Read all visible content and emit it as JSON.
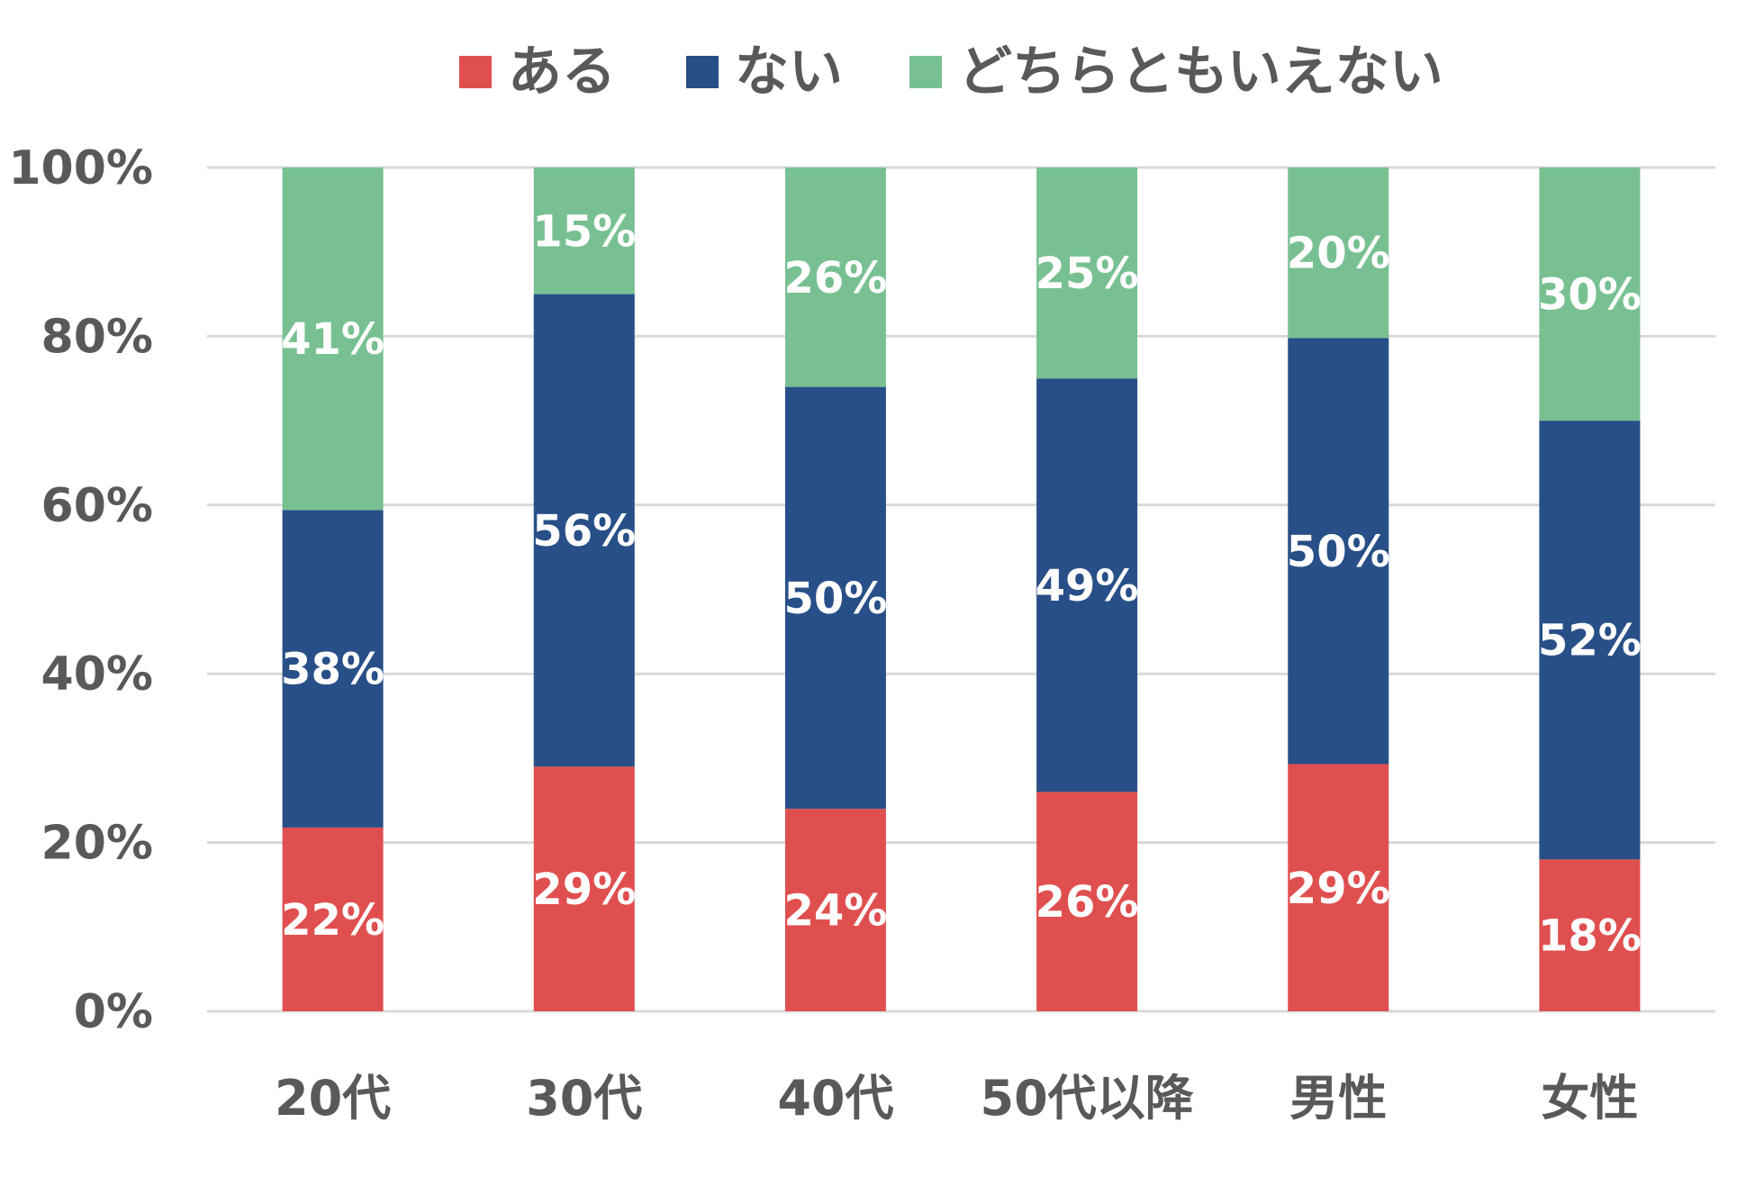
{
  "chart_data": {
    "type": "bar",
    "stacked": true,
    "percent_stacked": true,
    "categories": [
      "20代",
      "30代",
      "40代",
      "50代以降",
      "男性",
      "女性"
    ],
    "series": [
      {
        "name": "ある",
        "color": "#e04f4f",
        "values": [
          22,
          29,
          24,
          26,
          29,
          18
        ],
        "labels": [
          "22%",
          "29%",
          "24%",
          "26%",
          "29%",
          "18%"
        ]
      },
      {
        "name": "ない",
        "color": "#284f87",
        "values": [
          38,
          56,
          50,
          49,
          50,
          52
        ],
        "labels": [
          "38%",
          "56%",
          "50%",
          "49%",
          "50%",
          "52%"
        ]
      },
      {
        "name": "どちらともいえない",
        "color": "#78c092",
        "values": [
          41,
          15,
          26,
          25,
          20,
          30
        ],
        "labels": [
          "41%",
          "15%",
          "26%",
          "25%",
          "20%",
          "30%"
        ]
      }
    ],
    "ylim": [
      0,
      100
    ],
    "yticks": [
      0,
      20,
      40,
      60,
      80,
      100
    ],
    "ytick_labels": [
      "0%",
      "20%",
      "40%",
      "60%",
      "80%",
      "100%"
    ],
    "legend_position": "top-center",
    "grid": true,
    "title": "",
    "xlabel": "",
    "ylabel": ""
  }
}
